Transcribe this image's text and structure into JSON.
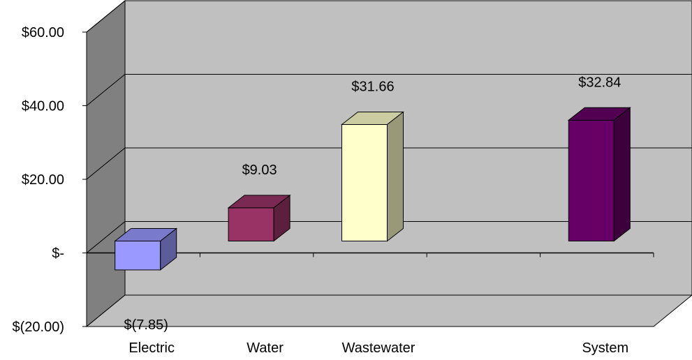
{
  "chart_data": {
    "type": "bar",
    "style": "3d",
    "categories": [
      "Electric",
      "Water",
      "Wastewater",
      "",
      "System"
    ],
    "values": [
      -7.85,
      9.03,
      31.66,
      null,
      32.84
    ],
    "data_labels": [
      "$(7.85)",
      "$9.03",
      "$31.66",
      "",
      "$32.84"
    ],
    "colors": [
      "#9999ff",
      "#993366",
      "#ffffcc",
      "",
      "#660066"
    ],
    "title": "",
    "xlabel": "",
    "ylabel": "",
    "ylim": [
      -20,
      60
    ],
    "ytick_values": [
      -20,
      0,
      20,
      40,
      60
    ],
    "ytick_labels": [
      "$(20.00)",
      "$-",
      "$20.00",
      "$40.00",
      "$60.00"
    ],
    "grid": true,
    "legend": "none"
  }
}
